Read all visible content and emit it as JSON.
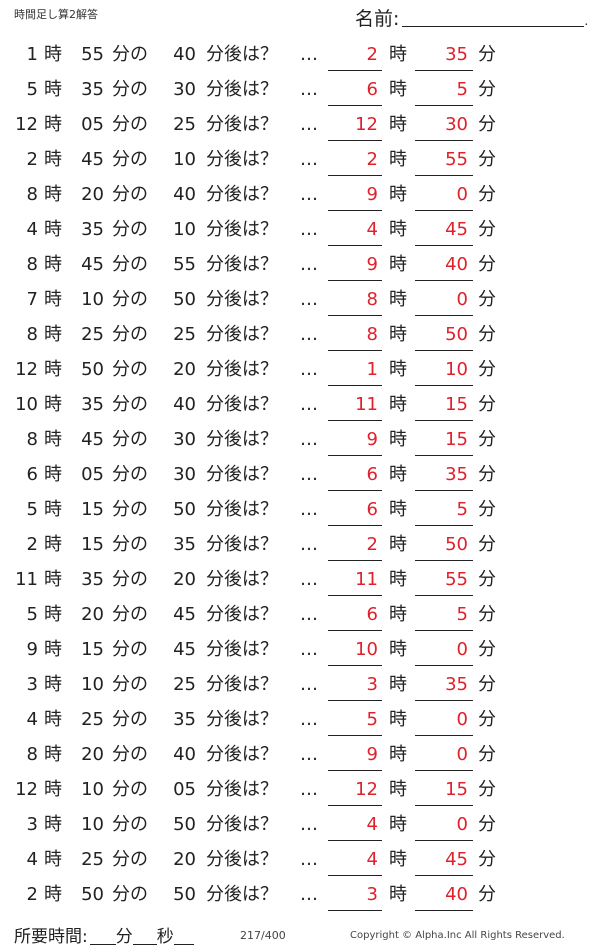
{
  "header": {
    "title": "時間足し算2解答",
    "name_label": "名前:",
    "name_end": "."
  },
  "labels": {
    "hour": "時",
    "minute_of": "分の",
    "minutes_later": "分後は？",
    "ellipsis": "…",
    "minute": "分"
  },
  "problems": [
    {
      "h": "1",
      "m": "55",
      "add": "40",
      "ans_h": "2",
      "ans_m": "35"
    },
    {
      "h": "5",
      "m": "35",
      "add": "30",
      "ans_h": "6",
      "ans_m": "5"
    },
    {
      "h": "12",
      "m": "05",
      "add": "25",
      "ans_h": "12",
      "ans_m": "30"
    },
    {
      "h": "2",
      "m": "45",
      "add": "10",
      "ans_h": "2",
      "ans_m": "55"
    },
    {
      "h": "8",
      "m": "20",
      "add": "40",
      "ans_h": "9",
      "ans_m": "0"
    },
    {
      "h": "4",
      "m": "35",
      "add": "10",
      "ans_h": "4",
      "ans_m": "45"
    },
    {
      "h": "8",
      "m": "45",
      "add": "55",
      "ans_h": "9",
      "ans_m": "40"
    },
    {
      "h": "7",
      "m": "10",
      "add": "50",
      "ans_h": "8",
      "ans_m": "0"
    },
    {
      "h": "8",
      "m": "25",
      "add": "25",
      "ans_h": "8",
      "ans_m": "50"
    },
    {
      "h": "12",
      "m": "50",
      "add": "20",
      "ans_h": "1",
      "ans_m": "10"
    },
    {
      "h": "10",
      "m": "35",
      "add": "40",
      "ans_h": "11",
      "ans_m": "15"
    },
    {
      "h": "8",
      "m": "45",
      "add": "30",
      "ans_h": "9",
      "ans_m": "15"
    },
    {
      "h": "6",
      "m": "05",
      "add": "30",
      "ans_h": "6",
      "ans_m": "35"
    },
    {
      "h": "5",
      "m": "15",
      "add": "50",
      "ans_h": "6",
      "ans_m": "5"
    },
    {
      "h": "2",
      "m": "15",
      "add": "35",
      "ans_h": "2",
      "ans_m": "50"
    },
    {
      "h": "11",
      "m": "35",
      "add": "20",
      "ans_h": "11",
      "ans_m": "55"
    },
    {
      "h": "5",
      "m": "20",
      "add": "45",
      "ans_h": "6",
      "ans_m": "5"
    },
    {
      "h": "9",
      "m": "15",
      "add": "45",
      "ans_h": "10",
      "ans_m": "0"
    },
    {
      "h": "3",
      "m": "10",
      "add": "25",
      "ans_h": "3",
      "ans_m": "35"
    },
    {
      "h": "4",
      "m": "25",
      "add": "35",
      "ans_h": "5",
      "ans_m": "0"
    },
    {
      "h": "8",
      "m": "20",
      "add": "40",
      "ans_h": "9",
      "ans_m": "0"
    },
    {
      "h": "12",
      "m": "10",
      "add": "05",
      "ans_h": "12",
      "ans_m": "15"
    },
    {
      "h": "3",
      "m": "10",
      "add": "50",
      "ans_h": "4",
      "ans_m": "0"
    },
    {
      "h": "4",
      "m": "25",
      "add": "20",
      "ans_h": "4",
      "ans_m": "45"
    },
    {
      "h": "2",
      "m": "50",
      "add": "50",
      "ans_h": "3",
      "ans_m": "40"
    }
  ],
  "footer": {
    "time_required_label": "所要時間:",
    "minute_unit": "分",
    "second_unit": "秒",
    "page_number": "217/400",
    "copyright": "Copyright ©  Alpha.Inc All Rights Reserved."
  },
  "colors": {
    "answer": "#e0202a",
    "text": "#222222"
  }
}
